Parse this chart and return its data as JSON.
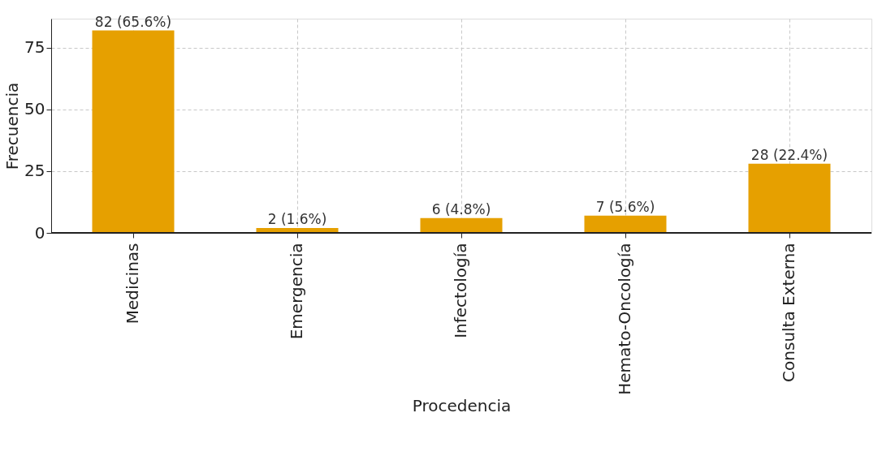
{
  "chart_data": {
    "type": "bar",
    "xlabel": "Procedencia",
    "ylabel": "Frecuencia",
    "categories": [
      "Medicinas",
      "Emergencia",
      "Infectología",
      "Hemato-Oncología",
      "Consulta Externa"
    ],
    "values": [
      82,
      2,
      6,
      7,
      28
    ],
    "color": "#e6a000",
    "value_labels": [
      "82 (65.6%)",
      "2 (1.6%)",
      "6 (4.8%)",
      "7 (5.6%)",
      "28 (22.4%)"
    ],
    "ylim": [
      0,
      86.8
    ],
    "yticks": [
      0,
      25,
      50,
      75
    ],
    "grid": true
  }
}
